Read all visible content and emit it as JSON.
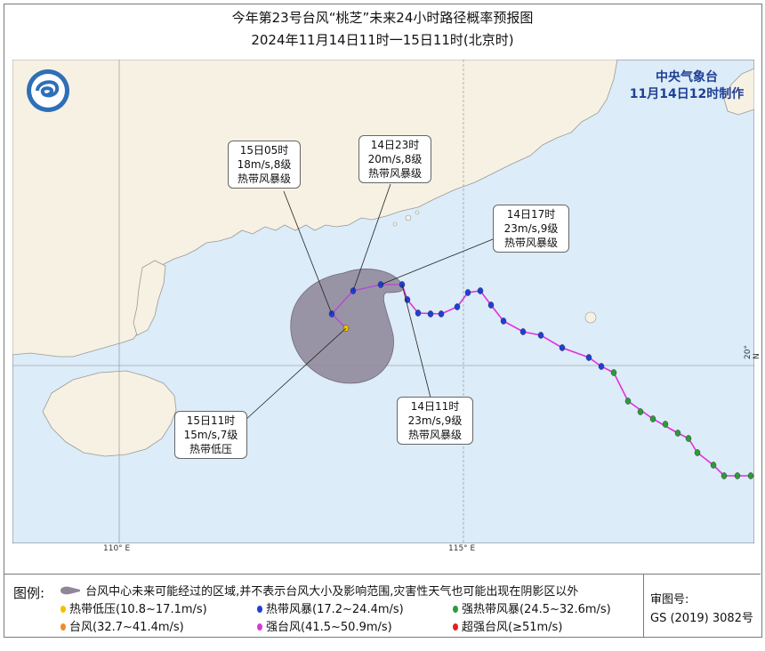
{
  "title": {
    "line1": "今年第23号台风“桃芝”未来24小时路径概率预报图",
    "line2": "2024年11月14日11时一15日11时(北京时)"
  },
  "agency": {
    "name": "中央气象台",
    "issued": "11月14日12时制作"
  },
  "axes": {
    "lon_110": "110° E",
    "lon_115": "115° E",
    "lat_20": "20° N"
  },
  "callouts": {
    "c1": {
      "time": "15日05时",
      "wind": "18m/s,8级",
      "grade": "热带风暴级"
    },
    "c2": {
      "time": "14日23时",
      "wind": "20m/s,8级",
      "grade": "热带风暴级"
    },
    "c3": {
      "time": "14日17时",
      "wind": "23m/s,9级",
      "grade": "热带风暴级"
    },
    "c4": {
      "time": "14日11时",
      "wind": "23m/s,9级",
      "grade": "热带风暴级"
    },
    "c5": {
      "time": "15日11时",
      "wind": "15m/s,7级",
      "grade": "热带低压"
    }
  },
  "legend": {
    "title": "图例:",
    "cone_desc": "台风中心未来可能经过的区域,并不表示台风大小及影响范围,灾害性天气也可能出现在阴影区以外",
    "items": {
      "td": {
        "label": "热带低压(10.8~17.1m/s)",
        "color": "#f2c200"
      },
      "ts": {
        "label": "热带风暴(17.2~24.4m/s)",
        "color": "#1f3fd6"
      },
      "sts": {
        "label": "强热带风暴(24.5~32.6m/s)",
        "color": "#2e9a3a"
      },
      "ty": {
        "label": "台风(32.7~41.4m/s)",
        "color": "#f08c2a"
      },
      "sty": {
        "label": "强台风(41.5~50.9m/s)",
        "color": "#d63ad6"
      },
      "superty": {
        "label": "超强台风(≥51m/s)",
        "color": "#e02020"
      }
    },
    "review_title": "审图号:",
    "review_no": "GS (2019) 3082号"
  },
  "colors": {
    "sea": "#dcecf8",
    "land": "#f6f1e2",
    "cone": "#8f8798",
    "track": "#e030e0",
    "forecast": "#b050d0"
  }
}
